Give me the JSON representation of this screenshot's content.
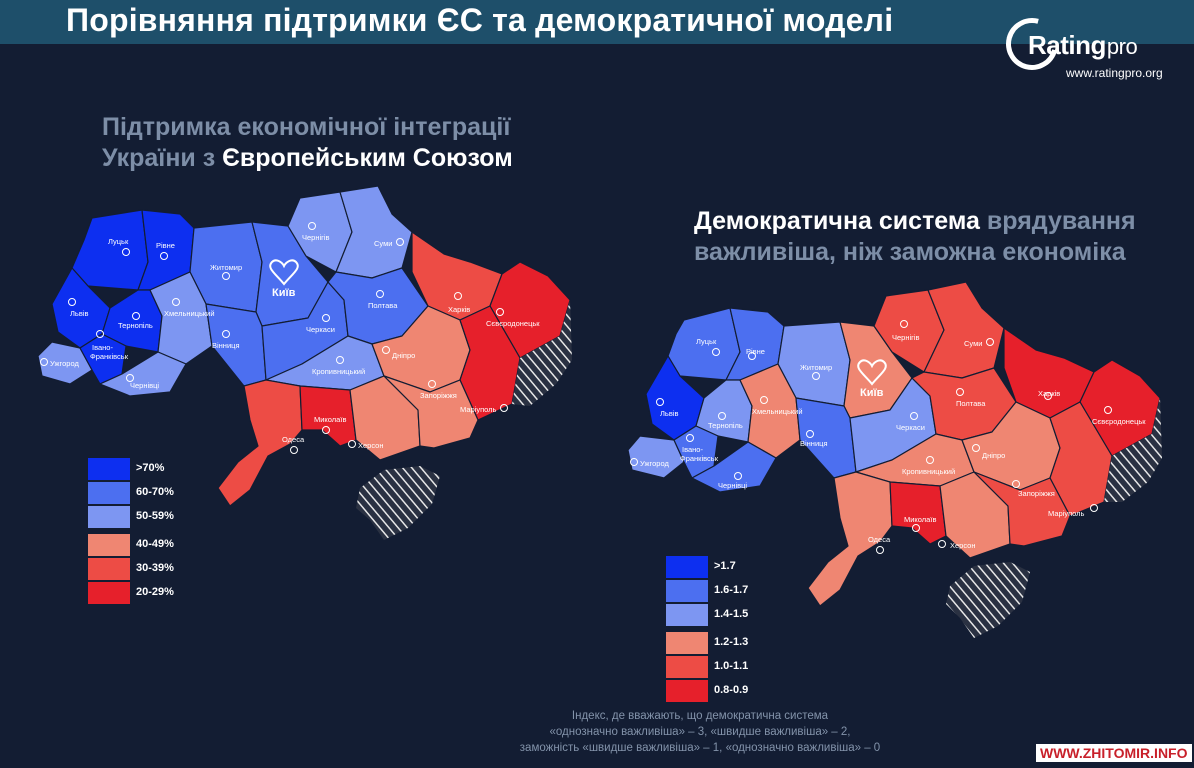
{
  "page": {
    "title": "Порівняння підтримки ЄС та демократичної моделі",
    "logo_text": "Rating",
    "logo_pro": "pro",
    "logo_url": "www.ratingpro.org",
    "watermark": "WWW.ZHITOMIR.INFO",
    "footnote": [
      "Індекс, де вважають, що демократична система",
      "«однозначно важливіша» – 3, «швидше важливіша» – 2,",
      "заможність «швидше важливіша» – 1, «однозначно важливіша» – 0"
    ]
  },
  "colors": {
    "blue_1": "#0d2ff0",
    "blue_2": "#4c6ff0",
    "blue_3": "#7d96f2",
    "red_1": "#ef8672",
    "red_2": "#ed4c45",
    "red_3": "#e6202b",
    "occupied_hatch": "#ffffff"
  },
  "eu_map": {
    "title_line1": "Підтримка економічної інтеграції",
    "title_line2_muted": "України з",
    "title_line2_bright": "Європейським Союзом",
    "legend": [
      {
        "label": ">70%",
        "color": "#0d2ff0"
      },
      {
        "label": "60-70%",
        "color": "#4c6ff0"
      },
      {
        "label": "50-59%",
        "color": "#7d96f2"
      },
      {
        "label": "40-49%",
        "color": "#ef8672"
      },
      {
        "label": "30-39%",
        "color": "#ed4c45"
      },
      {
        "label": "20-29%",
        "color": "#e6202b"
      }
    ],
    "cities": {
      "lutsk": "Луцьк",
      "rivne": "Рівне",
      "zhytomyr": "Житомир",
      "kyiv": "Київ",
      "chernihiv": "Чернігів",
      "sumy": "Суми",
      "lviv": "Львів",
      "ternopil": "Тернопіль",
      "khmelnytskyi": "Хмельницький",
      "vinnytsia": "Вінниця",
      "cherkasy": "Черкаси",
      "poltava": "Полтава",
      "kharkiv": "Харків",
      "sievierodonetsk": "Сєвєродонецьк",
      "ivano_frankivsk_1": "Івано-",
      "ivano_frankivsk_2": "Франківськ",
      "uzhhorod": "Ужгород",
      "chernivtsi": "Чернівці",
      "kropyvnytskyi": "Кропивницький",
      "dnipro": "Дніпро",
      "zaporizhzhia": "Запоріжжя",
      "mariupol": "Маріуполь",
      "mykolaiv": "Миколаїв",
      "odesa": "Одеса",
      "kherson": "Херсон"
    }
  },
  "democracy_map": {
    "title_line1_bright": "Демократична система",
    "title_line1_muted": "врядування",
    "title_line2": "важливіша, ніж заможна економіка",
    "legend": [
      {
        "label": ">1.7",
        "color": "#0d2ff0"
      },
      {
        "label": "1.6-1.7",
        "color": "#4c6ff0"
      },
      {
        "label": "1.4-1.5",
        "color": "#7d96f2"
      },
      {
        "label": "1.2-1.3",
        "color": "#ef8672"
      },
      {
        "label": "1.0-1.1",
        "color": "#ed4c45"
      },
      {
        "label": "0.8-0.9",
        "color": "#e6202b"
      }
    ],
    "cities": {
      "lutsk": "Луцьк",
      "rivne": "Рівне",
      "zhytomyr": "Житомир",
      "kyiv": "Київ",
      "chernihiv": "Чернігів",
      "sumy": "Суми",
      "lviv": "Львів",
      "ternopil": "Тернопіль",
      "khmelnytskyi": "Хмельницький",
      "vinnytsia": "Вінниця",
      "cherkasy": "Черкаси",
      "poltava": "Полтава",
      "kharkiv": "Харків",
      "sievierodonetsk": "Сєвєродонецьк",
      "ivano_frankivsk_1": "Івано-",
      "ivano_frankivsk_2": "Франківськ",
      "uzhhorod": "Ужгород",
      "chernivtsi": "Чернівці",
      "kropyvnytskyi": "Кропивницький",
      "dnipro": "Дніпро",
      "zaporizhzhia": "Запоріжжя",
      "mariupol": "Маріуполь",
      "mykolaiv": "Миколаїв",
      "odesa": "Одеса",
      "kherson": "Херсон"
    }
  }
}
